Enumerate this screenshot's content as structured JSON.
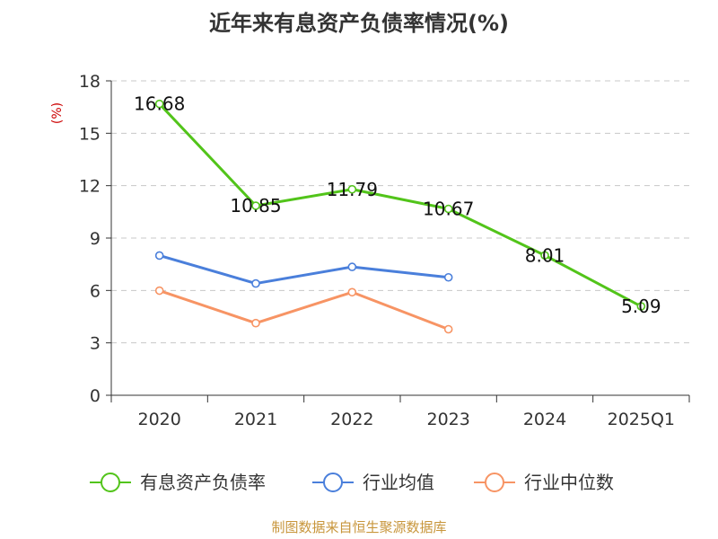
{
  "chart_data": {
    "type": "line",
    "title": "近年来有息资产负债率情况(%)",
    "unit_label": "(%)",
    "categories": [
      "2020",
      "2021",
      "2022",
      "2023",
      "2024",
      "2025Q1"
    ],
    "ylim": [
      0,
      18
    ],
    "yticks": [
      0,
      3,
      6,
      9,
      12,
      15,
      18
    ],
    "grid": true,
    "legend_position": "bottom",
    "series": [
      {
        "name": "有息资产负债率",
        "color": "#52c41a",
        "values": [
          16.68,
          10.85,
          11.79,
          10.67,
          8.01,
          5.09
        ],
        "value_labels": [
          "16.68",
          "10.85",
          "11.79",
          "10.67",
          "8.01",
          "5.09"
        ]
      },
      {
        "name": "行业均值",
        "color": "#4a7fdb",
        "values": [
          8.0,
          6.4,
          7.35,
          6.75,
          null,
          null
        ]
      },
      {
        "name": "行业中位数",
        "color": "#f79464",
        "values": [
          5.99,
          4.13,
          5.9,
          3.78,
          null,
          null
        ]
      }
    ],
    "source": "制图数据来自恒生聚源数据库"
  }
}
